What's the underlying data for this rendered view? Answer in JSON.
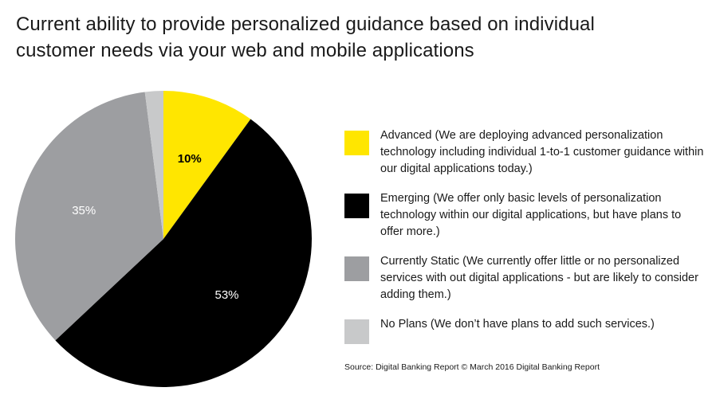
{
  "title": {
    "line1": "Current ability to provide personalized guidance based on individual",
    "line2": "customer needs via your web and mobile applications"
  },
  "chart_data": {
    "type": "pie",
    "categories": [
      "Advanced",
      "Emerging",
      "Currently Static",
      "No Plans"
    ],
    "values": [
      10,
      53,
      35,
      2
    ],
    "data_labels": [
      "10%",
      "53%",
      "35%",
      ""
    ],
    "colors": [
      "#FFE600",
      "#000000",
      "#9D9EA1",
      "#C8C9CA"
    ],
    "label_colors": [
      "#000000",
      "#ffffff",
      "#ffffff",
      "#000000"
    ],
    "start_angle_deg": 0,
    "direction": "clockwise",
    "legend_position": "right"
  },
  "legend": [
    {
      "text": "Advanced (We are deploying advanced personalization technology including individual 1-to-1 customer guidance within our digital applications today.)",
      "color": "#FFE600"
    },
    {
      "text": "Emerging (We offer only basic levels of personalization technology within our digital applications, but have plans to offer more.)",
      "color": "#000000"
    },
    {
      "text": "Currently Static (We currently offer little or no personalized services with out digital applications - but are likely to consider adding them.)",
      "color": "#9D9EA1"
    },
    {
      "text": "No Plans (We don’t have plans to add such services.)",
      "color": "#C8C9CA"
    }
  ],
  "source": "Source: Digital Banking Report © March 2016 Digital Banking Report"
}
